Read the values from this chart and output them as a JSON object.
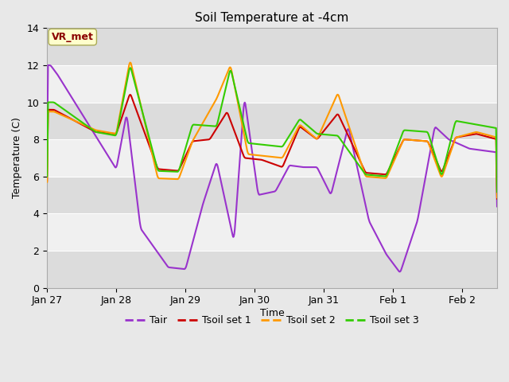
{
  "title": "Soil Temperature at -4cm",
  "xlabel": "Time",
  "ylabel": "Temperature (C)",
  "ylim": [
    0,
    14
  ],
  "yticks": [
    0,
    2,
    4,
    6,
    8,
    10,
    12,
    14
  ],
  "xtick_labels": [
    "Jan 27",
    "Jan 28",
    "Jan 29",
    "Jan 30",
    "Jan 31",
    "Feb 1",
    "Feb 2"
  ],
  "annotation_text": "VR_met",
  "annotation_color": "#8B0000",
  "annotation_bg": "#FFFFCC",
  "annotation_edge": "#AAAA55",
  "fig_bg": "#E8E8E8",
  "plot_bg_dark": "#DCDCDC",
  "plot_bg_light": "#F0F0F0",
  "grid_color": "#FFFFFF",
  "colors": {
    "Tair": "#9933CC",
    "Tsoil1": "#CC0000",
    "Tsoil2": "#FF9900",
    "Tsoil3": "#33CC00"
  },
  "legend_labels": [
    "Tair",
    "Tsoil set 1",
    "Tsoil set 2",
    "Tsoil set 3"
  ],
  "linewidth": 1.5
}
